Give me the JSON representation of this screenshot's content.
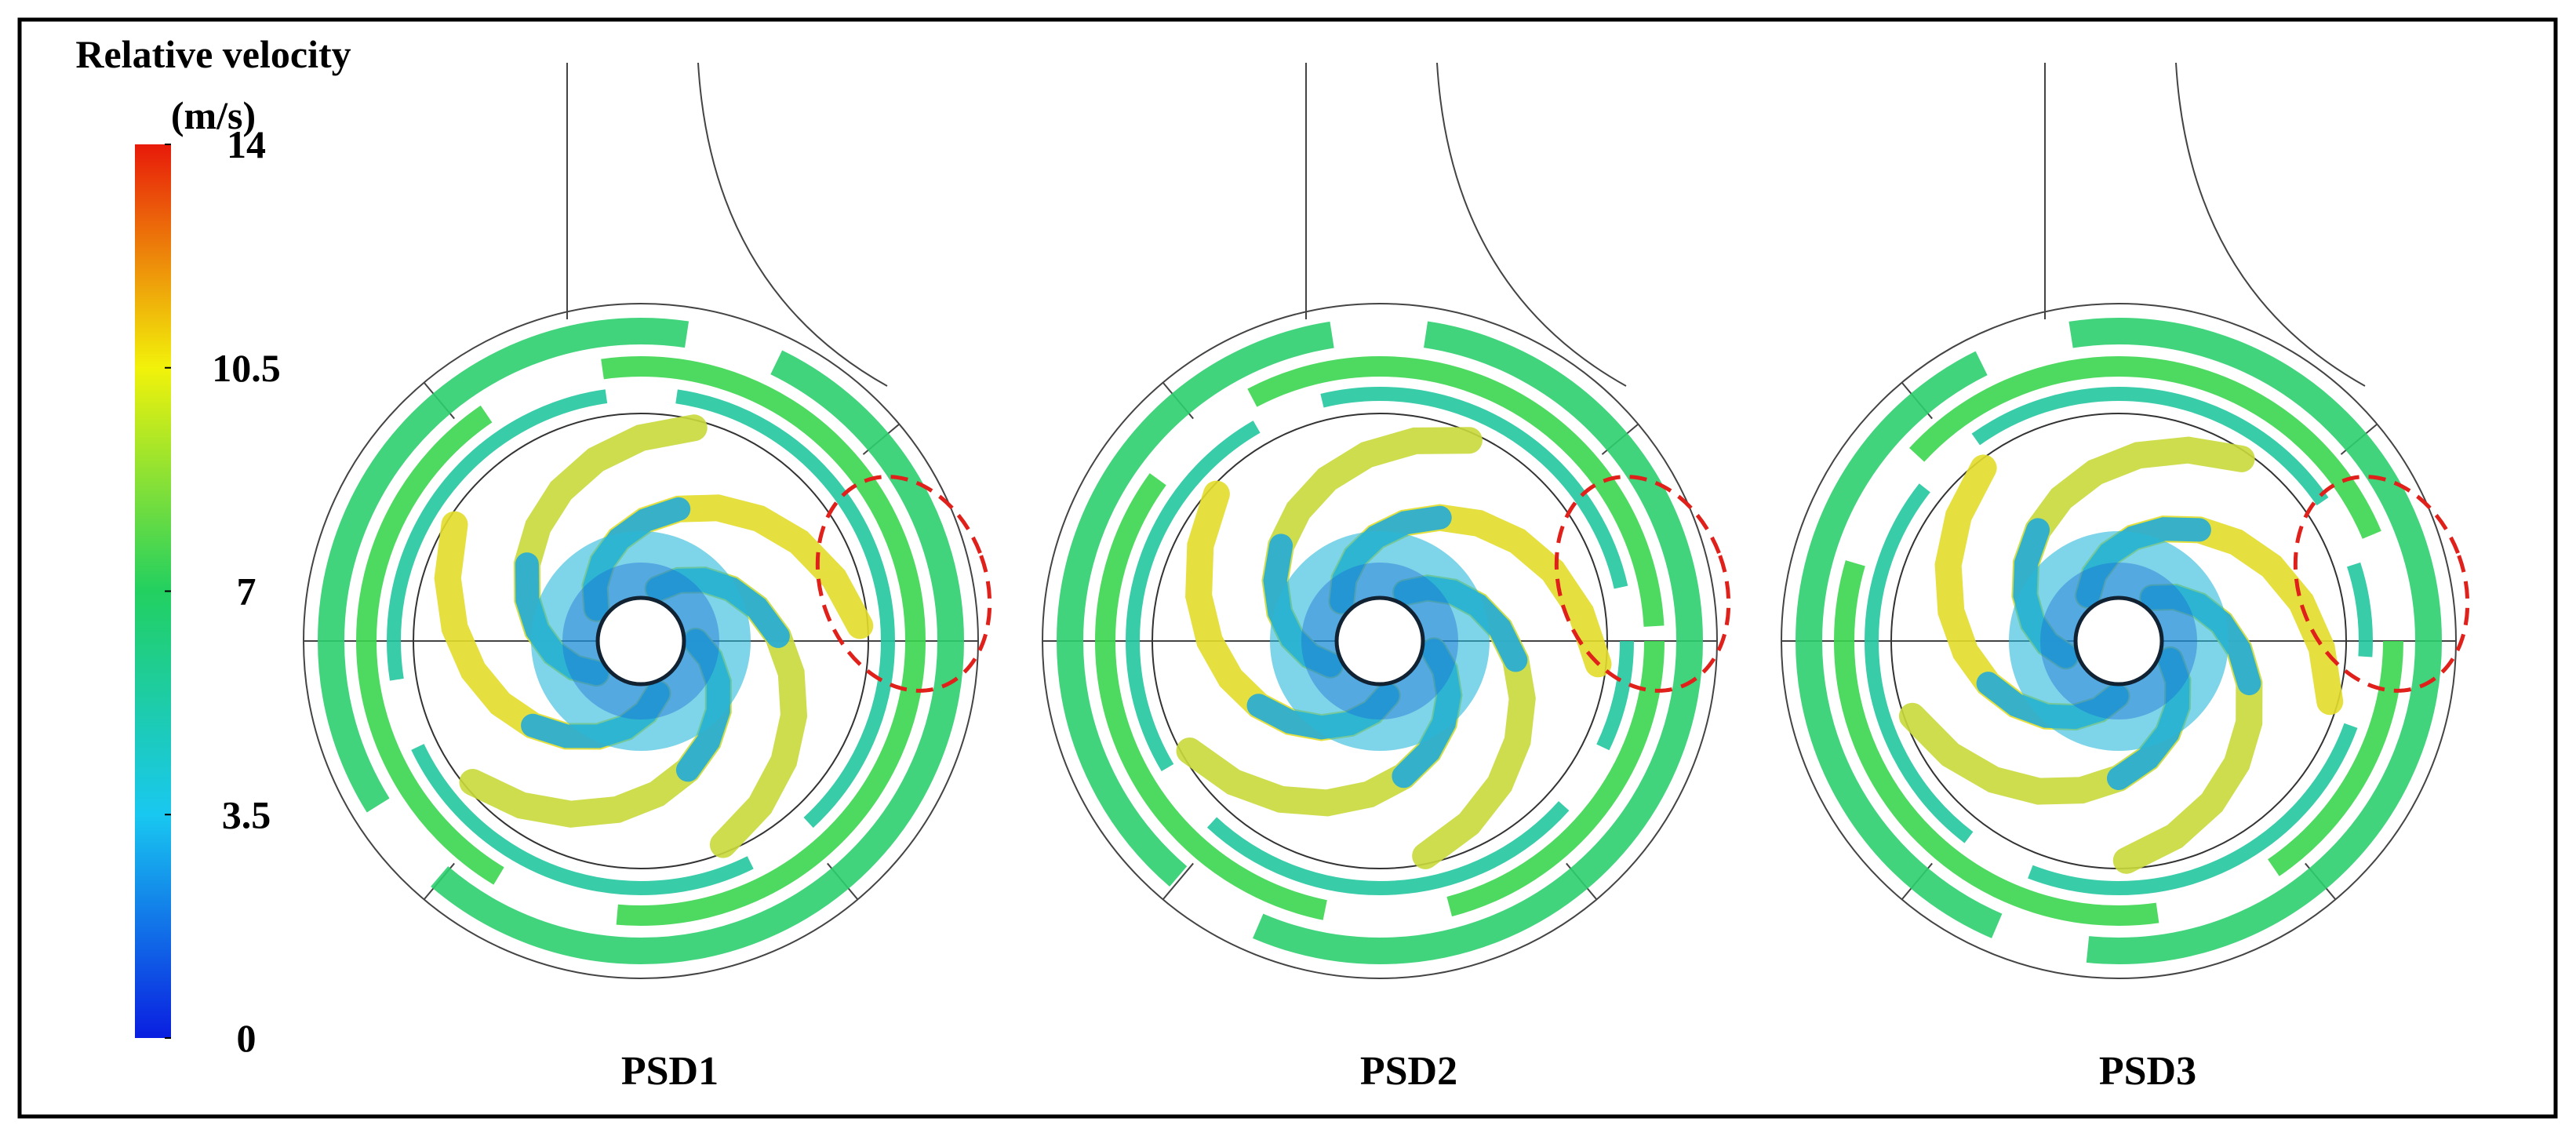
{
  "colorbar": {
    "title": [
      "Relative velocity",
      "(m/s)"
    ],
    "lim": [
      0,
      14
    ],
    "ticks": [
      0,
      3.5,
      7,
      10.5,
      14
    ],
    "colors": [
      "#0a1ee0",
      "#19c8f0",
      "#22d060",
      "#f2f20a",
      "#e81a0a"
    ]
  },
  "panels": [
    {
      "label": "PSD1"
    },
    {
      "label": "PSD2"
    },
    {
      "label": "PSD3"
    }
  ]
}
